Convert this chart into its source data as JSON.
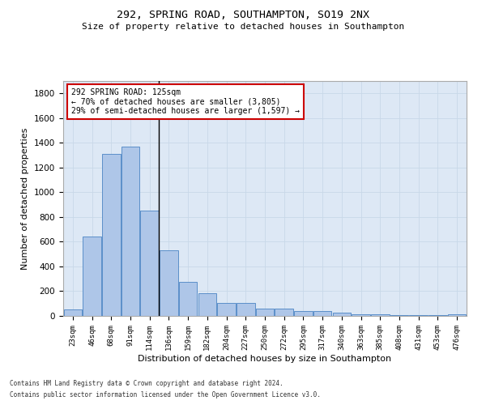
{
  "title1": "292, SPRING ROAD, SOUTHAMPTON, SO19 2NX",
  "title2": "Size of property relative to detached houses in Southampton",
  "xlabel": "Distribution of detached houses by size in Southampton",
  "ylabel": "Number of detached properties",
  "footer1": "Contains HM Land Registry data © Crown copyright and database right 2024.",
  "footer2": "Contains public sector information licensed under the Open Government Licence v3.0.",
  "annotation_line1": "292 SPRING ROAD: 125sqm",
  "annotation_line2": "← 70% of detached houses are smaller (3,805)",
  "annotation_line3": "29% of semi-detached houses are larger (1,597) →",
  "bar_color": "#aec6e8",
  "bar_edge_color": "#5b8fc9",
  "marker_line_color": "#000000",
  "annotation_box_edge_color": "#cc0000",
  "background_color": "#ffffff",
  "grid_color": "#c8d8e8",
  "categories": [
    "23sqm",
    "46sqm",
    "68sqm",
    "91sqm",
    "114sqm",
    "136sqm",
    "159sqm",
    "182sqm",
    "204sqm",
    "227sqm",
    "250sqm",
    "272sqm",
    "295sqm",
    "317sqm",
    "340sqm",
    "363sqm",
    "385sqm",
    "408sqm",
    "431sqm",
    "453sqm",
    "476sqm"
  ],
  "values": [
    50,
    640,
    1310,
    1370,
    850,
    530,
    275,
    185,
    105,
    105,
    60,
    60,
    38,
    38,
    27,
    15,
    10,
    5,
    5,
    5,
    15
  ],
  "marker_bin_index": 4,
  "ylim": [
    0,
    1900
  ],
  "yticks": [
    0,
    200,
    400,
    600,
    800,
    1000,
    1200,
    1400,
    1600,
    1800
  ],
  "figsize": [
    6.0,
    5.0
  ],
  "dpi": 100
}
